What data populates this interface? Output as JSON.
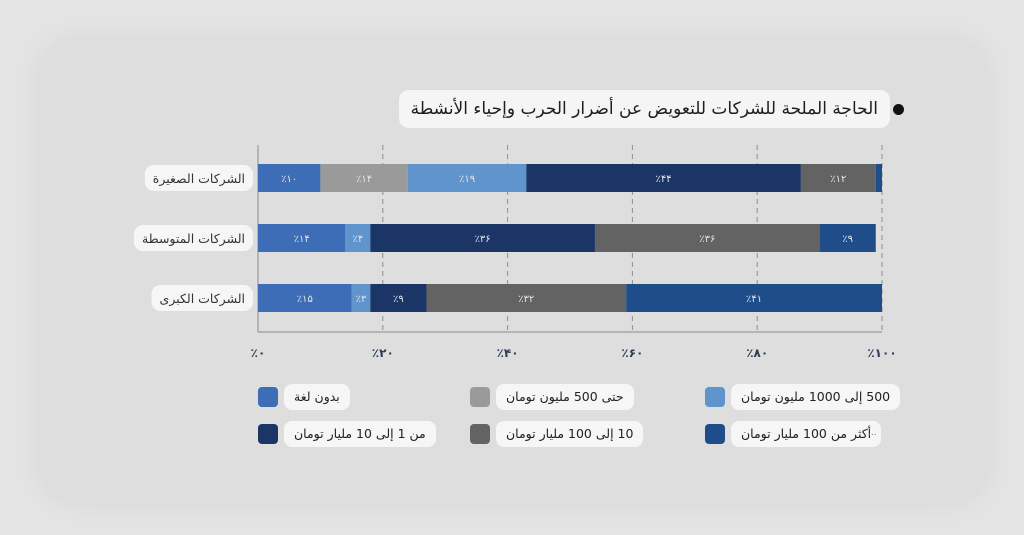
{
  "chart_data": {
    "type": "bar",
    "orientation": "horizontal",
    "stacked": true,
    "title": "الحاجة الملحة للشركات للتعويض عن أضرار الحرب وإحياء الأنشطة",
    "categories": [
      "الشركات الصغيرة",
      "الشركات المتوسطة",
      "الشركات الكبرى"
    ],
    "series": [
      {
        "name": "بدون لغة",
        "color": "#3d6db6",
        "values": [
          10,
          14,
          15
        ],
        "labels": [
          "٪۱۰",
          "٪۱۴",
          "٪۱۵"
        ]
      },
      {
        "name": "حتی 500 ملیون تومان",
        "color": "#9a9a9a",
        "values": [
          14,
          0,
          0
        ],
        "labels": [
          "٪۱۴",
          "",
          ""
        ]
      },
      {
        "name": "500 إلى 1000 مليون تومان",
        "color": "#5f94cc",
        "values": [
          19,
          4,
          3
        ],
        "labels": [
          "٪۱۹",
          "٪۴",
          "٪۳"
        ]
      },
      {
        "name": "من 1 إلى 10 مليار تومان",
        "color": "#1b3566",
        "values": [
          44,
          36,
          9
        ],
        "labels": [
          "٪۴۴",
          "٪۳۶",
          "٪۹"
        ]
      },
      {
        "name": "10 إلى 100 مليار تومان",
        "color": "#636363",
        "values": [
          12,
          36,
          32
        ],
        "labels": [
          "٪۱۲",
          "٪۳۶",
          "٪۳۲"
        ]
      },
      {
        "name": "أكثر من 100 مليار تومان",
        "color": "#1e4d8a",
        "values": [
          1,
          9,
          41
        ],
        "labels": [
          "",
          "٪۹",
          "٪۴۱"
        ]
      }
    ],
    "xlim": [
      0,
      100
    ],
    "xticks": [
      0,
      20,
      40,
      60,
      80,
      100
    ],
    "xtick_labels": [
      "٪۰",
      "٪۲۰",
      "٪۴۰",
      "٪۶۰",
      "٪۸۰",
      "٪۱۰۰"
    ],
    "grid": true,
    "legend_position": "bottom"
  },
  "legend_extra": "..."
}
